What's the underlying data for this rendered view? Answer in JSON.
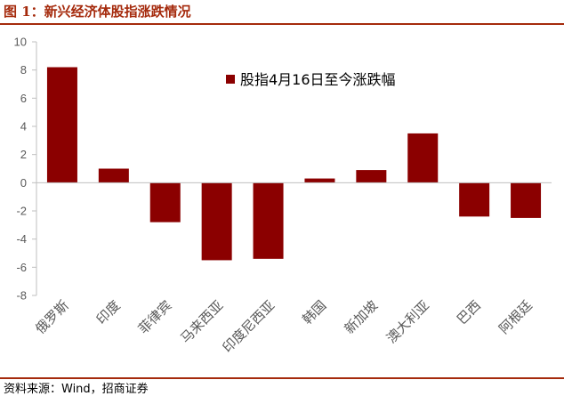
{
  "header": {
    "figure_label": "图 1：",
    "title": "新兴经济体股指涨跌情况"
  },
  "footer": {
    "source": "资料来源：Wind，招商证券"
  },
  "colors": {
    "title": "#a52a0c",
    "bar": "#8b0000",
    "axis": "#bfbfbf",
    "tick_label": "#595959",
    "text": "#000000"
  },
  "chart_data": {
    "type": "bar",
    "title": "",
    "xlabel": "",
    "ylabel": "",
    "ylim": [
      -8,
      10
    ],
    "yticks": [
      10,
      8,
      6,
      4,
      2,
      0,
      -2,
      -4,
      -6,
      -8
    ],
    "grid": false,
    "legend_position": "top-center",
    "categories": [
      "俄罗斯",
      "印度",
      "菲律宾",
      "马来西亚",
      "印度尼西亚",
      "韩国",
      "新加坡",
      "澳大利亚",
      "巴西",
      "阿根廷"
    ],
    "series": [
      {
        "name": "股指4月16日至今涨跌幅",
        "values": [
          8.2,
          1.0,
          -2.8,
          -5.5,
          -5.4,
          0.3,
          0.9,
          3.5,
          -2.4,
          -2.5
        ]
      }
    ]
  }
}
